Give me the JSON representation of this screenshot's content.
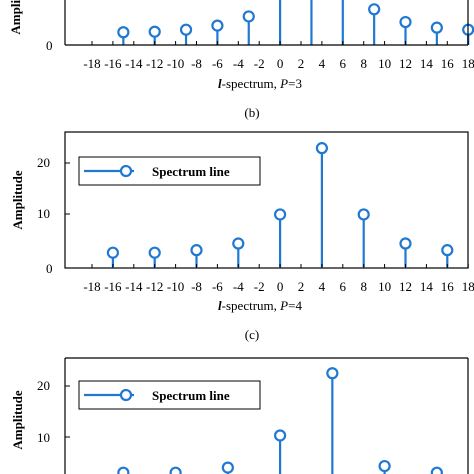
{
  "colors": {
    "stem": "#1f78d1",
    "axis": "#000000"
  },
  "panels": [
    {
      "ylabel": "Amplitude",
      "xlabel_var": "l",
      "xlabel_rest": "-spectrum, ",
      "xlabel_p": "P",
      "xlabel_eq": "=3",
      "caption": "(b)",
      "legend": "",
      "yticks": [
        "0"
      ]
    },
    {
      "ylabel": "Amplitude",
      "xlabel_var": "l",
      "xlabel_rest": "-spectrum, ",
      "xlabel_p": "P",
      "xlabel_eq": "=4",
      "caption": "(c)",
      "legend": "Spectrum line",
      "yticks": [
        "0",
        "10",
        "20"
      ]
    },
    {
      "ylabel": "Amplitude",
      "caption": "",
      "legend": "Spectrum line",
      "yticks": [
        "10",
        "20"
      ]
    }
  ],
  "chart_data": [
    {
      "type": "stem",
      "title": "",
      "xlabel": "l-spectrum, P=3",
      "ylabel": "Amplitude",
      "xlim": [
        -18,
        18
      ],
      "ylim": [
        0,
        25
      ],
      "xticks": [
        -18,
        -16,
        -14,
        -12,
        -10,
        -8,
        -6,
        -4,
        -2,
        0,
        2,
        4,
        6,
        8,
        10,
        12,
        14,
        16,
        18
      ],
      "x": [
        -15,
        -12,
        -9,
        -6,
        -3,
        0,
        3,
        6,
        9,
        12,
        15,
        18
      ],
      "y": [
        2.5,
        2.6,
        3.0,
        3.8,
        5.6,
        10.4,
        23.0,
        23.0,
        7.0,
        4.5,
        3.4,
        3.0
      ]
    },
    {
      "type": "stem",
      "title": "",
      "xlabel": "l-spectrum, P=4",
      "ylabel": "Amplitude",
      "xlim": [
        -18,
        18
      ],
      "ylim": [
        0,
        25
      ],
      "xticks": [
        -18,
        -16,
        -14,
        -12,
        -10,
        -8,
        -6,
        -4,
        -2,
        0,
        2,
        4,
        6,
        8,
        10,
        12,
        14,
        16,
        18
      ],
      "x": [
        -16,
        -12,
        -8,
        -4,
        0,
        4,
        8,
        12,
        16
      ],
      "y": [
        3.0,
        3.0,
        3.5,
        4.8,
        10.5,
        23.5,
        10.5,
        4.8,
        3.5
      ],
      "legend": [
        "Spectrum line"
      ]
    },
    {
      "type": "stem",
      "title": "",
      "ylabel": "Amplitude",
      "xlim": [
        -18,
        18
      ],
      "ylim": [
        0,
        25
      ],
      "x": [
        -15,
        -10,
        -5,
        0,
        5,
        10,
        15
      ],
      "y": [
        3.0,
        3.0,
        4.0,
        10.3,
        22.5,
        4.3,
        3.0
      ],
      "legend": [
        "Spectrum line"
      ]
    }
  ]
}
